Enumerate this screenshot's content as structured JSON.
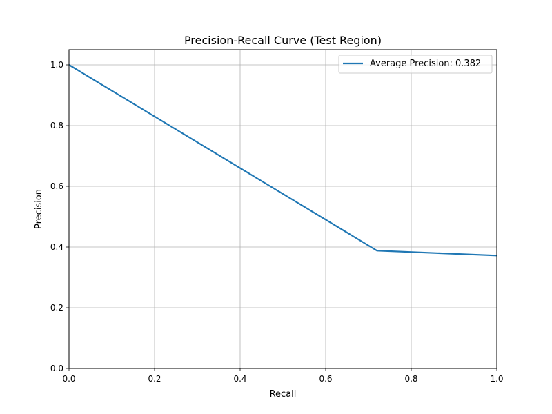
{
  "chart_data": {
    "type": "line",
    "title": "Precision-Recall Curve (Test Region)",
    "xlabel": "Recall",
    "ylabel": "Precision",
    "xlim": [
      0,
      1
    ],
    "ylim": [
      0,
      1.05
    ],
    "xticks": [
      0.0,
      0.2,
      0.4,
      0.6,
      0.8,
      1.0
    ],
    "xtick_labels": [
      "0.0",
      "0.2",
      "0.4",
      "0.6",
      "0.8",
      "1.0"
    ],
    "yticks": [
      0.0,
      0.2,
      0.4,
      0.6,
      0.8,
      1.0
    ],
    "ytick_labels": [
      "0.0",
      "0.2",
      "0.4",
      "0.6",
      "0.8",
      "1.0"
    ],
    "grid": true,
    "legend_position": "top-right",
    "series": [
      {
        "name": "Average Precision: 0.382",
        "color": "#1f77b4",
        "x": [
          0.0,
          0.72,
          1.0
        ],
        "y": [
          1.0,
          0.388,
          0.372
        ]
      }
    ]
  }
}
